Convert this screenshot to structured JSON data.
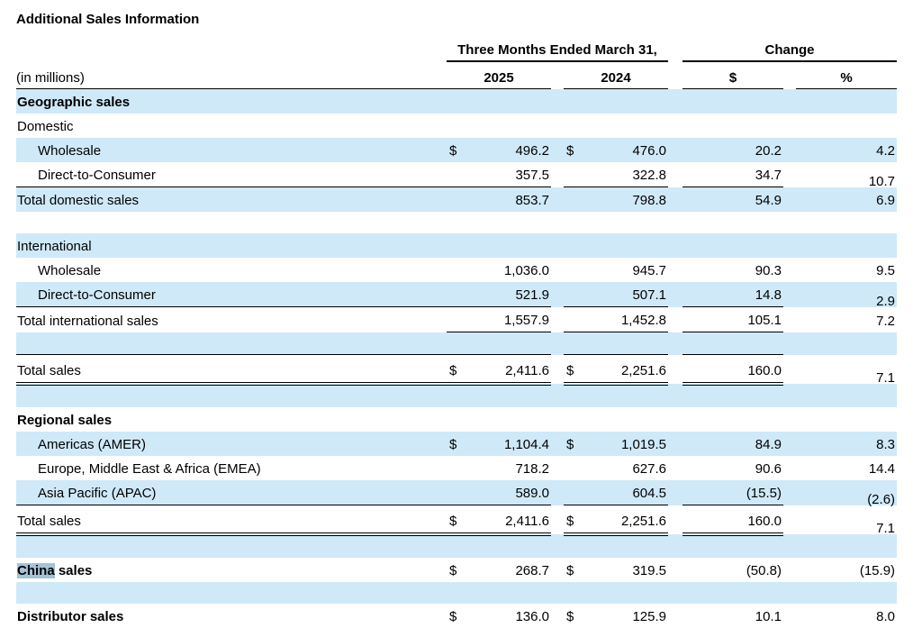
{
  "page": {
    "title": "Additional Sales Information"
  },
  "colors": {
    "stripe_blue": "#cfe9f8",
    "highlight_blue": "#a4c2d8",
    "rule_black": "#000000"
  },
  "table": {
    "group_headers": {
      "period": "Three Months Ended March 31,",
      "change": "Change"
    },
    "column_headers": {
      "unit": "(in millions)",
      "col_2025": "2025",
      "col_2024": "2024",
      "dollar": "$",
      "percent": "%"
    },
    "rows": [
      {
        "label": "Geographic sales",
        "bold": true,
        "bg": "blue"
      },
      {
        "label": "Domestic",
        "bg": "white"
      },
      {
        "label": "Wholesale",
        "indent": 1,
        "bg": "blue",
        "cur1": "$",
        "val1": "496.2",
        "cur2": "$",
        "val2": "476.0",
        "chg": "20.2",
        "pct": "4.2"
      },
      {
        "label": "Direct-to-Consumer",
        "indent": 1,
        "bg": "white",
        "val1": "357.5",
        "val2": "322.8",
        "chg": "34.7",
        "pct": "10.7",
        "pct_low": true
      },
      {
        "label": "Total domestic sales",
        "bg": "blue",
        "val1": "853.7",
        "val2": "798.8",
        "chg": "54.9",
        "pct": "6.9",
        "rule_top": true
      },
      {
        "spacer": true,
        "bg": "white"
      },
      {
        "label": "International",
        "bg": "blue"
      },
      {
        "label": "Wholesale",
        "indent": 1,
        "bg": "white",
        "val1": "1,036.0",
        "val2": "945.7",
        "chg": "90.3",
        "pct": "9.5"
      },
      {
        "label": "Direct-to-Consumer",
        "indent": 1,
        "bg": "blue",
        "val1": "521.9",
        "val2": "507.1",
        "chg": "14.8",
        "pct": "2.9",
        "pct_low": true
      },
      {
        "label": "Total international sales",
        "bg": "white",
        "val1": "1,557.9",
        "val2": "1,452.8",
        "chg": "105.1",
        "pct": "7.2",
        "rule_top": true,
        "val_rule_bottom": true
      },
      {
        "spacer": true,
        "bg": "blue"
      },
      {
        "label": "Total sales",
        "bg": "white",
        "total": true,
        "cur1": "$",
        "val1": "2,411.6",
        "cur2": "$",
        "val2": "2,251.6",
        "chg": "160.0",
        "pct": "7.1",
        "rule_top": true,
        "rule_bottom_double": true,
        "pct_low": true
      },
      {
        "spacer": true,
        "bg": "blue"
      },
      {
        "label": "Regional sales",
        "bold": true,
        "bg": "white"
      },
      {
        "label": "Americas (AMER)",
        "indent": 1,
        "bg": "blue",
        "cur1": "$",
        "val1": "1,104.4",
        "cur2": "$",
        "val2": "1,019.5",
        "chg": "84.9",
        "pct": "8.3"
      },
      {
        "label": "Europe, Middle East & Africa (EMEA)",
        "indent": 1,
        "bg": "white",
        "val1": "718.2",
        "val2": "627.6",
        "chg": "90.6",
        "pct": "14.4"
      },
      {
        "label": "Asia Pacific (APAC)",
        "indent": 1,
        "bg": "blue",
        "val1": "589.0",
        "val2": "604.5",
        "chg": "(15.5)",
        "pct": "(2.6)",
        "pct_low": true
      },
      {
        "label": "Total sales",
        "bg": "white",
        "total": true,
        "cur1": "$",
        "val1": "2,411.6",
        "cur2": "$",
        "val2": "2,251.6",
        "chg": "160.0",
        "pct": "7.1",
        "rule_top": true,
        "rule_bottom_double": true,
        "pct_low": true
      },
      {
        "spacer": true,
        "bg": "blue"
      },
      {
        "label_highlight": "China",
        "label_rest": " sales",
        "bold": true,
        "bg": "white",
        "cur1": "$",
        "val1": "268.7",
        "cur2": "$",
        "val2": "319.5",
        "chg": "(50.8)",
        "pct": "(15.9)"
      },
      {
        "spacer": true,
        "bg": "blue"
      },
      {
        "label": "Distributor sales",
        "bold": true,
        "bg": "white",
        "cur1": "$",
        "val1": "136.0",
        "cur2": "$",
        "val2": "125.9",
        "chg": "10.1",
        "pct": "8.0"
      }
    ]
  }
}
